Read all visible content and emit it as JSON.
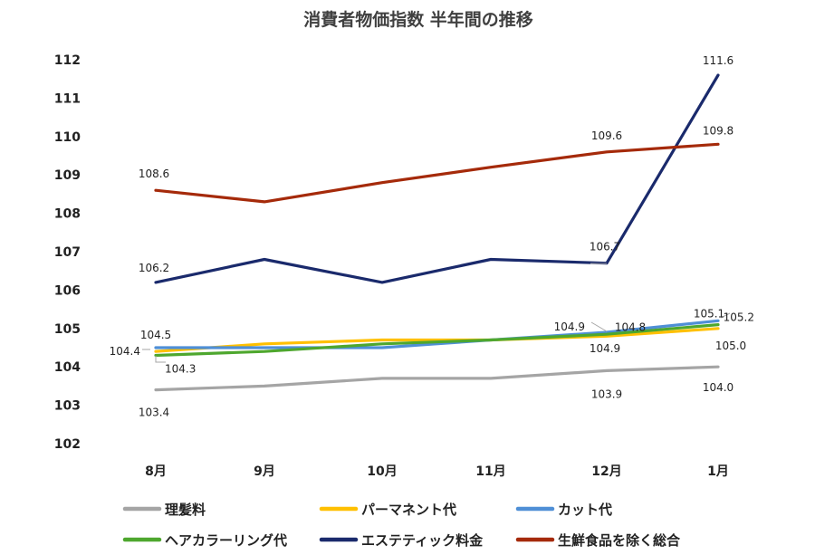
{
  "chart_data": {
    "type": "line",
    "title": "消費者物価指数 半年間の推移",
    "categories": [
      "8月",
      "9月",
      "10月",
      "11月",
      "12月",
      "1月"
    ],
    "ylim": [
      102,
      112
    ],
    "yticks": [
      "102",
      "103",
      "104",
      "105",
      "106",
      "107",
      "108",
      "109",
      "110",
      "111",
      "112"
    ],
    "grid": false,
    "legend_position": "bottom",
    "series": [
      {
        "name": "理髪料",
        "color": "#a5a5a5",
        "values": [
          103.4,
          103.5,
          103.7,
          103.7,
          103.9,
          104.0
        ]
      },
      {
        "name": "パーマネント代",
        "color": "#ffc000",
        "values": [
          104.4,
          104.6,
          104.7,
          104.7,
          104.8,
          105.0
        ]
      },
      {
        "name": "カット代",
        "color": "#4f8fd6",
        "values": [
          104.5,
          104.5,
          104.5,
          104.7,
          104.9,
          105.2
        ]
      },
      {
        "name": "ヘアカラーリング代",
        "color": "#4ea72e",
        "values": [
          104.3,
          104.4,
          104.6,
          104.7,
          104.85,
          105.1
        ]
      },
      {
        "name": "エステティック料金",
        "color": "#1a2a6c",
        "values": [
          106.2,
          106.8,
          106.2,
          106.8,
          106.7,
          111.6
        ]
      },
      {
        "name": "生鮮食品を除く総合",
        "color": "#a52a0a",
        "values": [
          108.6,
          108.3,
          108.8,
          109.2,
          109.6,
          109.8
        ]
      }
    ],
    "data_labels": [
      {
        "series": "生鮮食品を除く総合",
        "index": 0,
        "text": "108.6"
      },
      {
        "series": "生鮮食品を除く総合",
        "index": 4,
        "text": "109.6"
      },
      {
        "series": "生鮮食品を除く総合",
        "index": 5,
        "text": "109.8"
      },
      {
        "series": "エステティック料金",
        "index": 0,
        "text": "106.2"
      },
      {
        "series": "エステティック料金",
        "index": 4,
        "text": "106.7"
      },
      {
        "series": "エステティック料金",
        "index": 5,
        "text": "111.6"
      },
      {
        "series": "カット代",
        "index": 0,
        "text": "104.5"
      },
      {
        "series": "パーマネント代",
        "index": 0,
        "text": "104.4"
      },
      {
        "series": "ヘアカラーリング代",
        "index": 0,
        "text": "104.3"
      },
      {
        "series": "ヘアカラーリング代",
        "index": 4,
        "text": "104.9"
      },
      {
        "series": "パーマネント代",
        "index": 4,
        "text": "104.8"
      },
      {
        "series": "カット代",
        "index": 4,
        "text": "104.9"
      },
      {
        "series": "ヘアカラーリング代",
        "index": 5,
        "text": "105.1"
      },
      {
        "series": "カット代",
        "index": 5,
        "text": "105.2"
      },
      {
        "series": "パーマネント代",
        "index": 5,
        "text": "105.0"
      },
      {
        "series": "理髪料",
        "index": 0,
        "text": "103.4"
      },
      {
        "series": "理髪料",
        "index": 4,
        "text": "103.9"
      },
      {
        "series": "理髪料",
        "index": 5,
        "text": "104.0"
      }
    ]
  }
}
